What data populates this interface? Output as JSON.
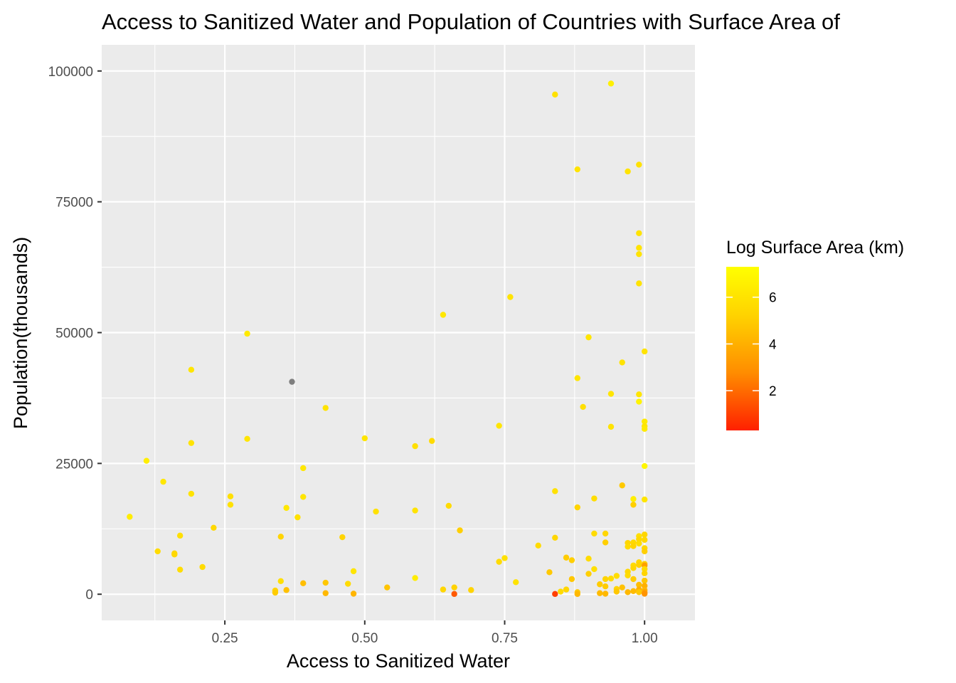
{
  "chart_data": {
    "type": "scatter",
    "title": "Access to Sanitized Water and Population of Countries with Surface Area of",
    "xlabel": "Access to Sanitized Water",
    "ylabel": "Population(thousands)",
    "xlim": [
      0.03,
      1.09
    ],
    "ylim": [
      -5000,
      105000
    ],
    "x_ticks": [
      0.25,
      0.5,
      0.75,
      1.0
    ],
    "x_tick_labels": [
      "0.25",
      "0.50",
      "0.75",
      "1.00"
    ],
    "y_ticks": [
      0,
      25000,
      50000,
      75000,
      100000
    ],
    "y_tick_labels": [
      "0",
      "25000",
      "50000",
      "75000",
      "100000"
    ],
    "grid": true,
    "legend": {
      "title": "Log Surface Area (km)",
      "placement": "right",
      "range": [
        0.3,
        7.3
      ],
      "breaks": [
        2,
        4,
        6
      ],
      "break_labels": [
        "2",
        "4",
        "6"
      ],
      "low_color": "#ff2000",
      "high_color": "#ffff00",
      "na_color": "#7f7f7f"
    },
    "points": [
      [
        0.08,
        14800,
        6.4
      ],
      [
        0.11,
        25500,
        6.5
      ],
      [
        0.13,
        8200,
        5.6
      ],
      [
        0.14,
        21500,
        6.2
      ],
      [
        0.16,
        7800,
        5.4
      ],
      [
        0.16,
        7600,
        5.5
      ],
      [
        0.17,
        11200,
        5.8
      ],
      [
        0.17,
        4700,
        5.7
      ],
      [
        0.19,
        42900,
        6.1
      ],
      [
        0.19,
        28900,
        6.0
      ],
      [
        0.19,
        19200,
        6.0
      ],
      [
        0.21,
        5200,
        5.6
      ],
      [
        0.23,
        12700,
        5.5
      ],
      [
        0.26,
        18700,
        5.8
      ],
      [
        0.26,
        17100,
        5.9
      ],
      [
        0.29,
        49800,
        6.3
      ],
      [
        0.29,
        29700,
        6.1
      ],
      [
        0.34,
        700,
        5.3
      ],
      [
        0.34,
        300,
        5.0
      ],
      [
        0.35,
        11000,
        5.3
      ],
      [
        0.35,
        2500,
        5.8
      ],
      [
        0.36,
        16500,
        6.2
      ],
      [
        0.36,
        800,
        4.6
      ],
      [
        0.37,
        40600,
        null
      ],
      [
        0.38,
        14700,
        5.9
      ],
      [
        0.39,
        24100,
        6.2
      ],
      [
        0.39,
        18600,
        6.1
      ],
      [
        0.39,
        2100,
        4.5
      ],
      [
        0.43,
        35600,
        6.0
      ],
      [
        0.43,
        2200,
        4.8
      ],
      [
        0.43,
        200,
        4.3
      ],
      [
        0.46,
        10900,
        5.3
      ],
      [
        0.47,
        2000,
        5.6
      ],
      [
        0.48,
        4400,
        6.1
      ],
      [
        0.48,
        100,
        4.2
      ],
      [
        0.5,
        29800,
        6.1
      ],
      [
        0.52,
        15800,
        5.9
      ],
      [
        0.54,
        1300,
        4.7
      ],
      [
        0.59,
        28300,
        5.8
      ],
      [
        0.59,
        16000,
        6.0
      ],
      [
        0.59,
        3100,
        6.4
      ],
      [
        0.62,
        29300,
        5.6
      ],
      [
        0.64,
        53400,
        6.2
      ],
      [
        0.64,
        900,
        5.4
      ],
      [
        0.65,
        16900,
        5.6
      ],
      [
        0.66,
        1300,
        5.2
      ],
      [
        0.66,
        50,
        1.6
      ],
      [
        0.67,
        12200,
        5.1
      ],
      [
        0.69,
        800,
        5.3
      ],
      [
        0.74,
        32200,
        6.1
      ],
      [
        0.74,
        6200,
        5.6
      ],
      [
        0.75,
        6900,
        5.9
      ],
      [
        0.76,
        56800,
        6.0
      ],
      [
        0.77,
        2300,
        6.0
      ],
      [
        0.81,
        9300,
        5.6
      ],
      [
        0.83,
        4200,
        4.9
      ],
      [
        0.84,
        95500,
        5.9
      ],
      [
        0.84,
        19700,
        5.9
      ],
      [
        0.84,
        10800,
        5.4
      ],
      [
        0.84,
        50,
        1.0
      ],
      [
        0.85,
        500,
        5.6
      ],
      [
        0.86,
        7000,
        5.0
      ],
      [
        0.86,
        900,
        5.4
      ],
      [
        0.87,
        6500,
        5.1
      ],
      [
        0.87,
        2900,
        4.8
      ],
      [
        0.88,
        81200,
        6.0
      ],
      [
        0.88,
        41300,
        6.1
      ],
      [
        0.88,
        16600,
        5.3
      ],
      [
        0.88,
        400,
        4.9
      ],
      [
        0.88,
        50,
        4.3
      ],
      [
        0.89,
        35800,
        5.8
      ],
      [
        0.9,
        49100,
        6.1
      ],
      [
        0.9,
        6800,
        5.6
      ],
      [
        0.9,
        3900,
        5.1
      ],
      [
        0.91,
        18300,
        5.7
      ],
      [
        0.91,
        11600,
        5.6
      ],
      [
        0.91,
        4800,
        5.8
      ],
      [
        0.92,
        1900,
        5.0
      ],
      [
        0.92,
        200,
        4.4
      ],
      [
        0.93,
        11600,
        5.4
      ],
      [
        0.93,
        9900,
        5.1
      ],
      [
        0.93,
        2900,
        5.3
      ],
      [
        0.93,
        1500,
        5.0
      ],
      [
        0.93,
        100,
        4.3
      ],
      [
        0.94,
        97600,
        6.6
      ],
      [
        0.94,
        38300,
        6.1
      ],
      [
        0.94,
        32000,
        6.0
      ],
      [
        0.94,
        3000,
        5.6
      ],
      [
        0.95,
        3500,
        5.7
      ],
      [
        0.95,
        1000,
        5.3
      ],
      [
        0.95,
        500,
        4.8
      ],
      [
        0.96,
        44300,
        6.0
      ],
      [
        0.96,
        20800,
        4.9
      ],
      [
        0.96,
        1300,
        4.6
      ],
      [
        0.97,
        80800,
        6.0
      ],
      [
        0.97,
        9800,
        5.4
      ],
      [
        0.97,
        9100,
        5.6
      ],
      [
        0.97,
        4300,
        5.5
      ],
      [
        0.97,
        3600,
        5.6
      ],
      [
        0.97,
        400,
        4.3
      ],
      [
        0.98,
        18200,
        6.5
      ],
      [
        0.98,
        17100,
        5.1
      ],
      [
        0.98,
        9900,
        5.5
      ],
      [
        0.98,
        9200,
        5.3
      ],
      [
        0.98,
        5500,
        5.6
      ],
      [
        0.98,
        5000,
        5.4
      ],
      [
        0.98,
        2900,
        5.0
      ],
      [
        0.98,
        600,
        4.4
      ],
      [
        0.99,
        82100,
        5.9
      ],
      [
        0.99,
        69000,
        6.0
      ],
      [
        0.99,
        66200,
        6.0
      ],
      [
        0.99,
        65000,
        6.0
      ],
      [
        0.99,
        59400,
        6.0
      ],
      [
        0.99,
        38200,
        6.1
      ],
      [
        0.99,
        36800,
        6.8
      ],
      [
        0.99,
        11100,
        5.8
      ],
      [
        0.99,
        10500,
        5.5
      ],
      [
        0.99,
        9700,
        5.7
      ],
      [
        0.99,
        6100,
        5.4
      ],
      [
        0.99,
        5600,
        5.2
      ],
      [
        0.99,
        1800,
        4.5
      ],
      [
        0.99,
        900,
        4.0
      ],
      [
        0.99,
        400,
        4.9
      ],
      [
        1.0,
        46400,
        6.0
      ],
      [
        1.0,
        33000,
        6.3
      ],
      [
        1.0,
        32100,
        6.1
      ],
      [
        1.0,
        31600,
        6.3
      ],
      [
        1.0,
        24500,
        6.9
      ],
      [
        1.0,
        18100,
        6.1
      ],
      [
        1.0,
        11400,
        5.4
      ],
      [
        1.0,
        10400,
        5.5
      ],
      [
        1.0,
        8800,
        5.4
      ],
      [
        1.0,
        8200,
        5.1
      ],
      [
        1.0,
        5800,
        5.1
      ],
      [
        1.0,
        5500,
        3.4
      ],
      [
        1.0,
        4800,
        5.6
      ],
      [
        1.0,
        4000,
        5.3
      ],
      [
        1.0,
        2600,
        4.8
      ],
      [
        1.0,
        1600,
        4.0
      ],
      [
        1.0,
        800,
        4.3
      ],
      [
        1.0,
        400,
        3.6
      ],
      [
        1.0,
        100,
        3.0
      ]
    ]
  }
}
